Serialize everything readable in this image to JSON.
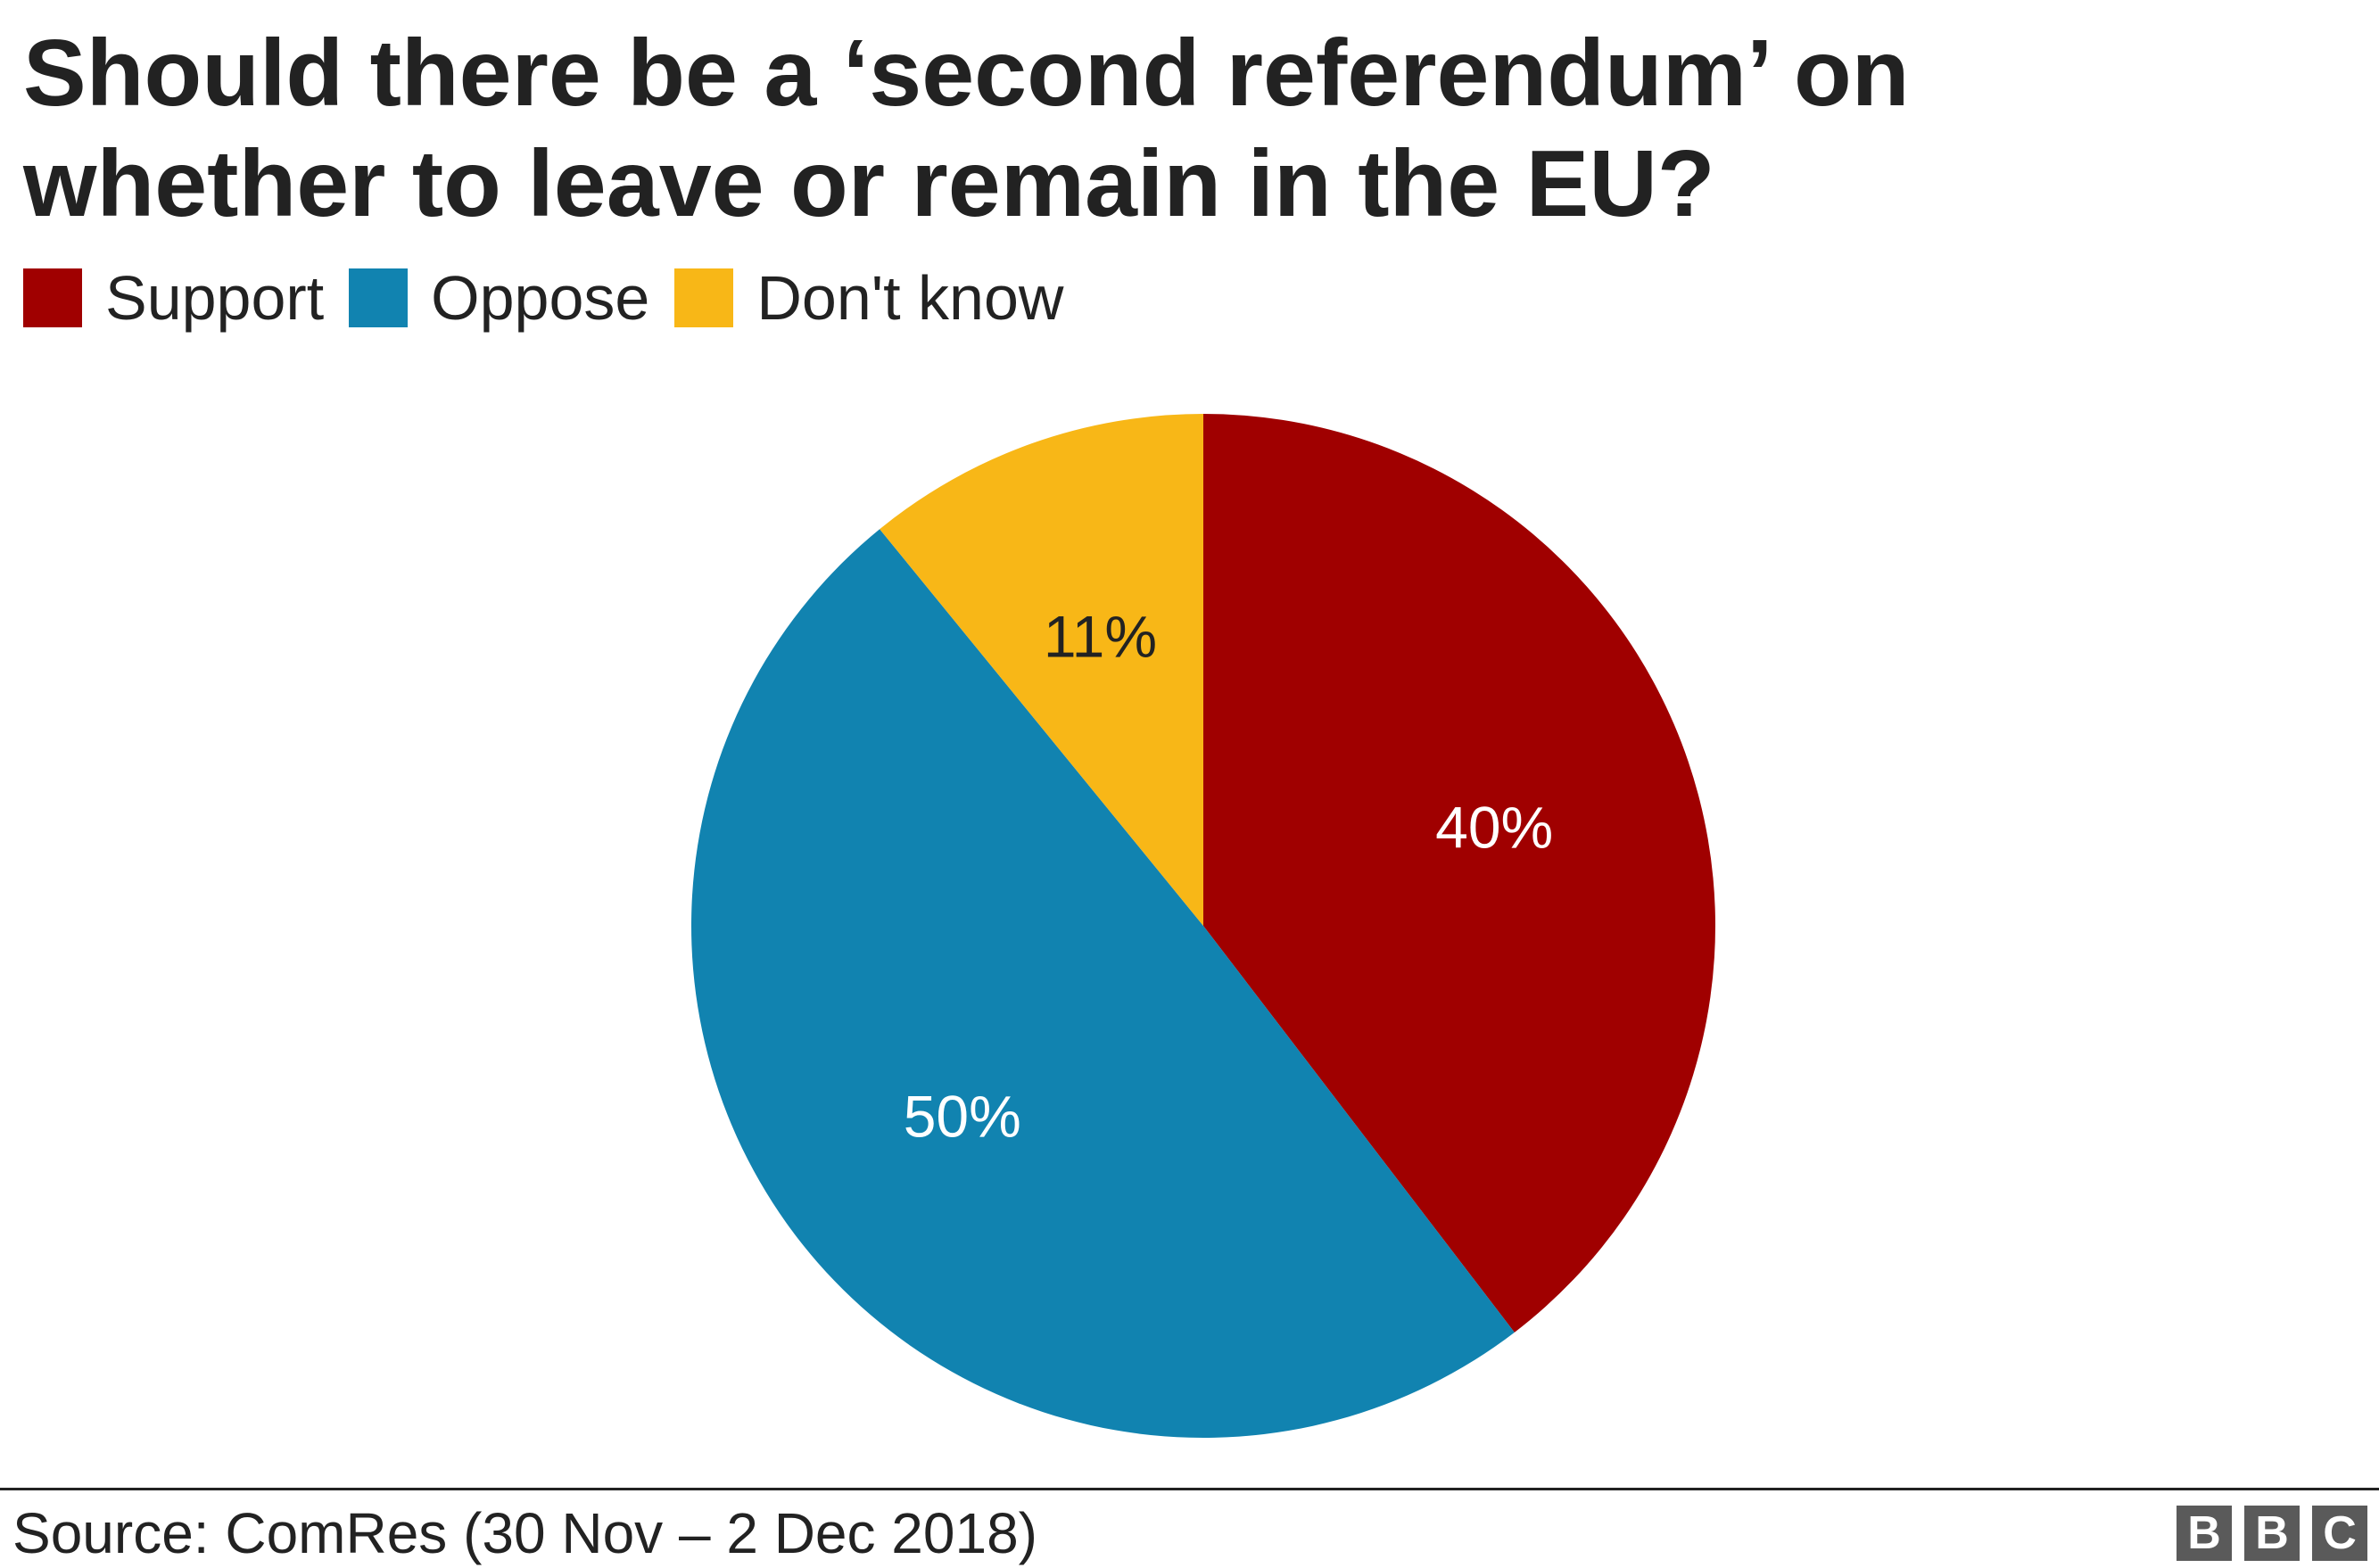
{
  "title": {
    "line1": "Should there be a ‘second referendum’ on",
    "line2": "whether to leave or remain in the EU?"
  },
  "legend": [
    {
      "label": "Support",
      "color": "#a00000"
    },
    {
      "label": "Oppose",
      "color": "#1183b0"
    },
    {
      "label": "Don't know",
      "color": "#f8b717"
    }
  ],
  "chart_data": {
    "type": "pie",
    "title": "Should there be a ‘second referendum’ on whether to leave or remain in the EU?",
    "legend_position": "top-left",
    "slices": [
      {
        "label": "Support",
        "value": 40,
        "display": "40%",
        "color": "#a00000",
        "label_color": "#ffffff"
      },
      {
        "label": "Oppose",
        "value": 50,
        "display": "50%",
        "color": "#1183b0",
        "label_color": "#ffffff"
      },
      {
        "label": "Don't know",
        "value": 11,
        "display": "11%",
        "color": "#f8b717",
        "label_color": "#222222"
      }
    ],
    "start_angle": "12 o'clock",
    "direction": "clockwise"
  },
  "footer": {
    "source": "Source: ComRes (30 Nov – 2 Dec 2018)",
    "logo_letters": [
      "B",
      "B",
      "C"
    ]
  }
}
